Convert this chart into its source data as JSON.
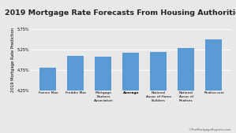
{
  "title": "2019 Mortgage Rate Forecasts From Housing Authorities",
  "ylabel": "2019 Mortgage Rate Prediction",
  "categories": [
    "Fannie Mae",
    "Freddie Mac",
    "Mortgage\nBankers\nAssociation",
    "Average",
    "National\nAssoc of Home\nBuilders",
    "National\nAssoc of\nRealtors",
    "Realtor.com"
  ],
  "values": [
    4.8,
    5.1,
    5.08,
    5.18,
    5.2,
    5.3,
    5.5
  ],
  "bar_color": "#5B9BD5",
  "average_index": 3,
  "ylim_min": 4.25,
  "ylim_max": 5.75,
  "yticks": [
    4.25,
    4.75,
    5.25,
    5.75
  ],
  "background_color": "#e8e8e8",
  "plot_bg_color": "#e8e8e8",
  "watermark": "©TheMortgageReports.com",
  "title_fontsize": 6.8,
  "axis_label_fontsize": 3.8,
  "tick_fontsize": 3.5,
  "xtick_fontsize": 3.2
}
